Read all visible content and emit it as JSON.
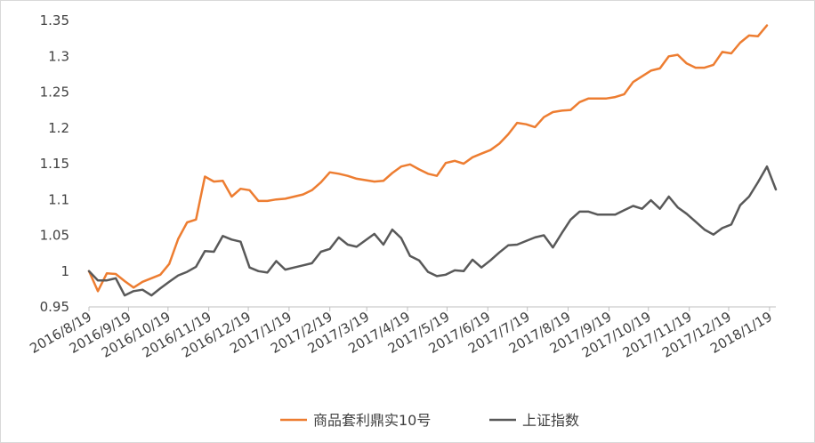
{
  "chart_data": {
    "type": "line",
    "title": "",
    "xlabel": "",
    "ylabel": "",
    "ylim": [
      0.95,
      1.35
    ],
    "yticks": [
      "0.95",
      "1",
      "1.05",
      "1.1",
      "1.15",
      "1.2",
      "1.25",
      "1.3",
      "1.35"
    ],
    "ytick_values": [
      0.95,
      1.0,
      1.05,
      1.1,
      1.15,
      1.2,
      1.25,
      1.3,
      1.35
    ],
    "xtick_labels": [
      "2016/8/19",
      "2016/9/19",
      "2016/10/19",
      "2016/11/19",
      "2016/12/19",
      "2017/1/19",
      "2017/2/19",
      "2017/3/19",
      "2017/4/19",
      "2017/5/19",
      "2017/6/19",
      "2017/7/19",
      "2017/8/19",
      "2017/9/19",
      "2017/10/19",
      "2017/11/19",
      "2017/12/19",
      "2018/1/19"
    ],
    "xtick_positions": [
      0,
      4.43,
      8.86,
      13.43,
      17.86,
      22.43,
      27,
      31.14,
      35.71,
      40.14,
      44.71,
      49.14,
      53.71,
      58.29,
      62.71,
      67.29,
      71.71,
      76.29
    ],
    "legend_position": "bottom",
    "grid": false,
    "series": [
      {
        "name": "商品套利鼎实10号",
        "color": "#ed7d31",
        "values": [
          1.0,
          0.972,
          0.997,
          0.996,
          0.986,
          0.977,
          0.985,
          0.99,
          0.995,
          1.01,
          1.045,
          1.068,
          1.072,
          1.132,
          1.125,
          1.126,
          1.104,
          1.115,
          1.113,
          1.098,
          1.098,
          1.1,
          1.101,
          1.104,
          1.107,
          1.113,
          1.124,
          1.138,
          1.136,
          1.133,
          1.129,
          1.127,
          1.125,
          1.126,
          1.137,
          1.146,
          1.149,
          1.142,
          1.136,
          1.133,
          1.151,
          1.154,
          1.15,
          1.159,
          1.164,
          1.169,
          1.178,
          1.191,
          1.207,
          1.205,
          1.201,
          1.215,
          1.222,
          1.224,
          1.225,
          1.236,
          1.241,
          1.241,
          1.241,
          1.243,
          1.247,
          1.264,
          1.272,
          1.28,
          1.283,
          1.3,
          1.302,
          1.29,
          1.284,
          1.284,
          1.288,
          1.306,
          1.304,
          1.319,
          1.329,
          1.328,
          1.343
        ]
      },
      {
        "name": "上证指数",
        "color": "#595959",
        "values": [
          1.0,
          0.987,
          0.987,
          0.99,
          0.966,
          0.972,
          0.974,
          0.966,
          0.976,
          0.985,
          0.994,
          0.999,
          1.006,
          1.028,
          1.027,
          1.049,
          1.044,
          1.041,
          1.005,
          1.0,
          0.998,
          1.014,
          1.002,
          1.005,
          1.008,
          1.011,
          1.027,
          1.031,
          1.047,
          1.037,
          1.034,
          1.043,
          1.052,
          1.037,
          1.058,
          1.046,
          1.021,
          1.015,
          0.999,
          0.993,
          0.995,
          1.001,
          1.0,
          1.016,
          1.005,
          1.015,
          1.026,
          1.036,
          1.037,
          1.042,
          1.047,
          1.05,
          1.033,
          1.053,
          1.072,
          1.083,
          1.083,
          1.079,
          1.079,
          1.079,
          1.085,
          1.091,
          1.087,
          1.099,
          1.087,
          1.104,
          1.089,
          1.08,
          1.069,
          1.058,
          1.051,
          1.06,
          1.065,
          1.092,
          1.104,
          1.124,
          1.146,
          1.114
        ]
      }
    ]
  }
}
